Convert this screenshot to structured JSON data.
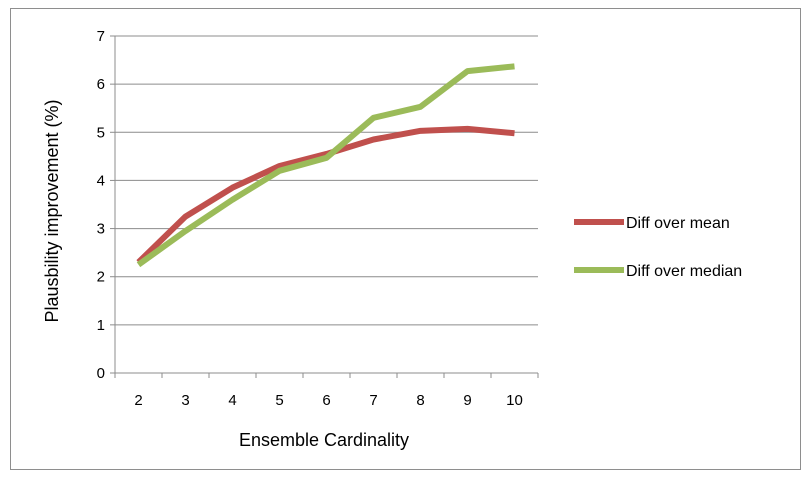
{
  "chart_data": {
    "type": "line",
    "title": "",
    "xlabel": "Ensemble Cardinality",
    "ylabel": "Plausbility improvement (%)",
    "categories": [
      "2",
      "3",
      "4",
      "5",
      "6",
      "7",
      "8",
      "9",
      "10"
    ],
    "ylim": [
      0,
      7
    ],
    "yticks": [
      "0",
      "1",
      "2",
      "3",
      "4",
      "5",
      "6",
      "7"
    ],
    "grid": true,
    "legend_position": "right",
    "series": [
      {
        "name": "Diff over mean",
        "color": "#c0504d",
        "values": [
          2.3,
          3.25,
          3.85,
          4.3,
          4.55,
          4.85,
          5.03,
          5.07,
          4.98
        ]
      },
      {
        "name": "Diff over median",
        "color": "#9bbb59",
        "values": [
          2.25,
          2.95,
          3.6,
          4.2,
          4.47,
          5.3,
          5.53,
          6.27,
          6.37
        ]
      }
    ]
  }
}
